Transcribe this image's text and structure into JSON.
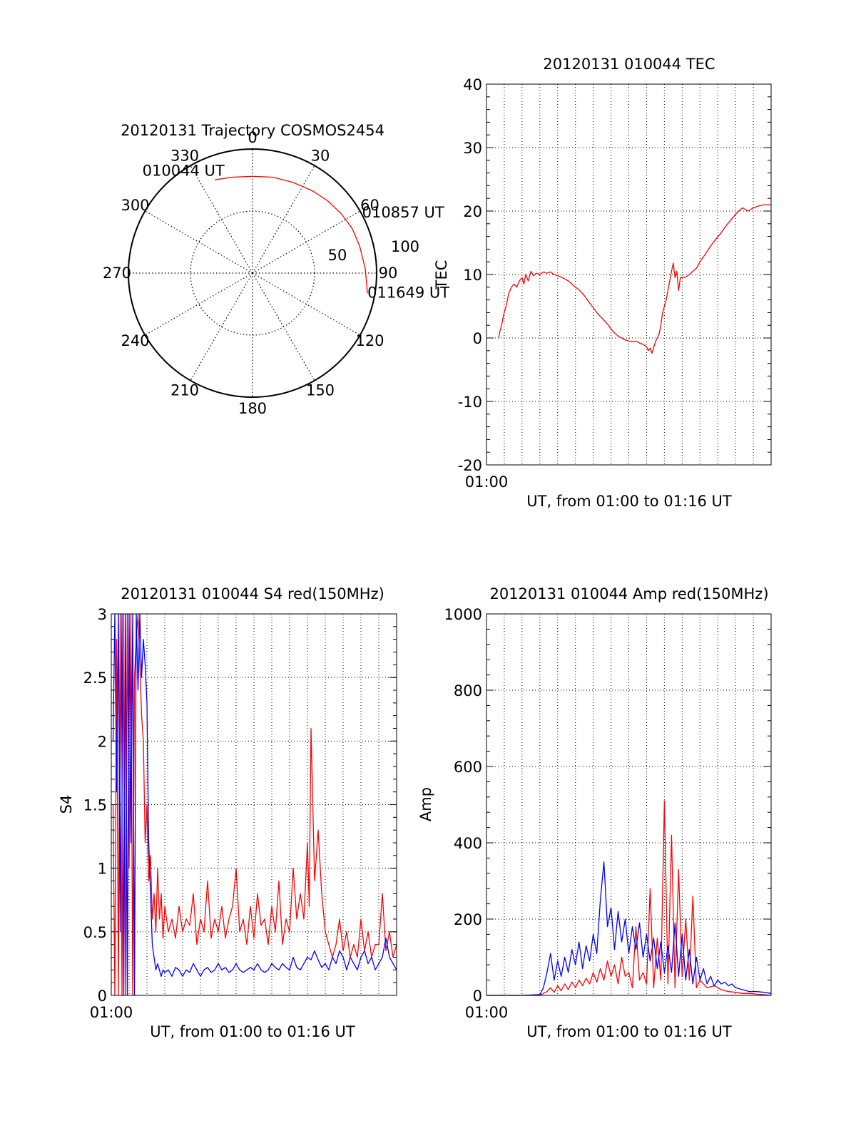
{
  "colors": {
    "red": "#ff0000",
    "blue": "#0000ff",
    "axis": "#000000",
    "grid": "#000000"
  },
  "chart_data": [
    {
      "id": "polar",
      "type": "polar",
      "title": "20120131 Trajectory COSMOS2454",
      "azimuth_labels": [
        "0",
        "30",
        "60",
        "90",
        "120",
        "150",
        "180",
        "210",
        "240",
        "270",
        "300",
        "330"
      ],
      "radial_labels": [
        "50",
        "100"
      ],
      "rlim": [
        0,
        100
      ],
      "grid": true,
      "trajectory": {
        "color": "#ff0000",
        "points": [
          {
            "az": 338,
            "r": 81
          },
          {
            "az": 348,
            "r": 79
          },
          {
            "az": 0,
            "r": 78
          },
          {
            "az": 12,
            "r": 79
          },
          {
            "az": 24,
            "r": 80
          },
          {
            "az": 36,
            "r": 82
          },
          {
            "az": 46,
            "r": 84
          },
          {
            "az": 56,
            "r": 86
          },
          {
            "az": 66,
            "r": 88
          },
          {
            "az": 76,
            "r": 89
          },
          {
            "az": 88,
            "r": 91
          },
          {
            "az": 100,
            "r": 94
          }
        ]
      },
      "annotations": [
        {
          "text": "010044 UT",
          "az": 338,
          "r": 81
        },
        {
          "text": "010857 UT",
          "az": 55,
          "r": 78
        },
        {
          "text": "011649 UT",
          "az": 100,
          "r": 94
        }
      ]
    },
    {
      "id": "tec",
      "type": "line",
      "title": "20120131 010044 TEC",
      "ylabel": "TEC",
      "xlabel": "UT, from 01:00 to 01:16 UT",
      "x_tick_label": "01:00",
      "xlim": [
        0,
        16
      ],
      "ylim": [
        -20,
        40
      ],
      "y_ticks": [
        -20,
        -10,
        0,
        10,
        20,
        30,
        40
      ],
      "grid": true,
      "series": [
        {
          "color": "#ff0000",
          "x": [
            0.68,
            0.75,
            0.85,
            0.95,
            1.1,
            1.25,
            1.4,
            1.55,
            1.7,
            1.85,
            2.0,
            2.1,
            2.2,
            2.35,
            2.5,
            2.65,
            2.8,
            3.0,
            3.2,
            3.4,
            3.6,
            3.8,
            4.0,
            4.2,
            4.4,
            4.6,
            4.8,
            5.0,
            5.2,
            5.4,
            5.6,
            5.8,
            6.0,
            6.2,
            6.4,
            6.6,
            6.8,
            7.0,
            7.2,
            7.4,
            7.6,
            7.8,
            8.0,
            8.2,
            8.4,
            8.6,
            8.8,
            9.0,
            9.1,
            9.2,
            9.3,
            9.4,
            9.5,
            9.6,
            9.7,
            9.8,
            9.9,
            10.0,
            10.1,
            10.2,
            10.3,
            10.4,
            10.5,
            10.6,
            10.7,
            10.8,
            10.9,
            11.0,
            11.2,
            11.4,
            11.6,
            11.8,
            12.0,
            12.3,
            12.6,
            12.9,
            13.2,
            13.5,
            13.8,
            14.1,
            14.4,
            14.7,
            15.0,
            15.3,
            15.6,
            16.0
          ],
          "y": [
            0.0,
            1.0,
            2.0,
            3.5,
            5.0,
            7.0,
            8.0,
            8.5,
            8.0,
            9.0,
            9.5,
            8.5,
            10.0,
            9.0,
            10.5,
            9.8,
            10.2,
            10.0,
            10.4,
            10.2,
            10.4,
            10.0,
            9.8,
            9.6,
            9.3,
            9.0,
            8.5,
            8.0,
            7.6,
            7.0,
            6.3,
            5.5,
            4.8,
            4.0,
            3.4,
            2.8,
            2.2,
            1.4,
            0.8,
            0.3,
            0.0,
            -0.3,
            -0.5,
            -0.6,
            -0.5,
            -0.8,
            -1.0,
            -1.4,
            -2.0,
            -1.6,
            -2.4,
            -1.5,
            -0.6,
            0.0,
            0.6,
            2.0,
            4.0,
            5.0,
            6.0,
            7.5,
            9.0,
            10.5,
            11.8,
            9.5,
            10.5,
            7.5,
            9.5,
            9.5,
            9.6,
            10.0,
            10.5,
            11.0,
            12.0,
            13.2,
            14.5,
            15.6,
            16.6,
            17.8,
            18.8,
            19.8,
            20.5,
            20.0,
            20.5,
            20.8,
            21.0,
            21.0
          ]
        }
      ]
    },
    {
      "id": "s4",
      "type": "line",
      "title": "20120131 010044 S4 red(150MHz)",
      "ylabel": "S4",
      "xlabel": "UT, from 01:00 to 01:16 UT",
      "x_tick_label": "01:00",
      "xlim": [
        0,
        16
      ],
      "ylim": [
        0,
        3
      ],
      "y_ticks": [
        0,
        0.5,
        1,
        1.5,
        2,
        2.5,
        3
      ],
      "y_tick_labels": [
        "0",
        "0.5",
        "1",
        "1.5",
        "2",
        "2.5",
        "3"
      ],
      "grid": true,
      "series": [
        {
          "color": "#ff0000",
          "x": [
            0.1,
            0.2,
            0.3,
            0.4,
            0.5,
            0.6,
            0.7,
            0.8,
            0.9,
            1.0,
            1.1,
            1.2,
            1.3,
            1.4,
            1.5,
            1.6,
            1.7,
            1.8,
            1.9,
            2.0,
            2.1,
            2.2,
            2.3,
            2.4,
            2.5,
            2.6,
            2.7,
            2.8,
            2.9,
            3.0,
            3.2,
            3.4,
            3.6,
            3.8,
            4.0,
            4.2,
            4.4,
            4.6,
            4.8,
            5.0,
            5.2,
            5.4,
            5.6,
            5.8,
            6.0,
            6.2,
            6.4,
            6.6,
            6.8,
            7.0,
            7.2,
            7.4,
            7.6,
            7.8,
            8.0,
            8.2,
            8.4,
            8.6,
            8.8,
            9.0,
            9.2,
            9.4,
            9.6,
            9.8,
            10.0,
            10.2,
            10.4,
            10.6,
            10.8,
            11.0,
            11.1,
            11.2,
            11.4,
            11.6,
            11.8,
            12.0,
            12.2,
            12.4,
            12.6,
            12.8,
            13.0,
            13.2,
            13.4,
            13.6,
            13.8,
            14.0,
            14.2,
            14.4,
            14.6,
            14.8,
            15.0,
            15.2,
            15.4,
            15.6,
            15.8,
            16.0
          ],
          "y": [
            1.5,
            0,
            2.8,
            0,
            3,
            0,
            3,
            0,
            3,
            1,
            3,
            0,
            2.5,
            2.8,
            3,
            2.6,
            2.2,
            2.0,
            1.2,
            1.5,
            0.9,
            1.1,
            0.6,
            0.8,
            0.5,
            1.0,
            0.6,
            0.8,
            0.45,
            0.7,
            0.5,
            0.6,
            0.45,
            0.7,
            0.5,
            0.6,
            0.55,
            0.8,
            0.4,
            0.6,
            0.5,
            0.9,
            0.45,
            0.6,
            0.5,
            0.7,
            0.45,
            0.6,
            0.7,
            1.0,
            0.5,
            0.6,
            0.4,
            0.7,
            0.45,
            0.8,
            0.55,
            0.6,
            0.4,
            0.7,
            0.5,
            0.9,
            0.4,
            0.6,
            0.5,
            1.0,
            0.6,
            0.8,
            0.6,
            1.2,
            0.7,
            2.1,
            0.9,
            1.3,
            0.8,
            0.5,
            0.4,
            0.3,
            0.4,
            0.6,
            0.35,
            0.5,
            0.3,
            0.4,
            0.3,
            0.6,
            0.35,
            0.5,
            0.3,
            0.4,
            0.4,
            0.8,
            0.35,
            0.5,
            0.3,
            0.4
          ]
        },
        {
          "color": "#0000ff",
          "x": [
            0.1,
            0.2,
            0.3,
            0.4,
            0.5,
            0.6,
            0.7,
            0.8,
            0.9,
            1.0,
            1.1,
            1.2,
            1.3,
            1.4,
            1.5,
            1.6,
            1.7,
            1.8,
            1.9,
            2.0,
            2.1,
            2.2,
            2.3,
            2.4,
            2.5,
            2.6,
            2.7,
            2.8,
            2.9,
            3.0,
            3.2,
            3.4,
            3.6,
            3.8,
            4.0,
            4.2,
            4.4,
            4.6,
            4.8,
            5.0,
            5.2,
            5.4,
            5.6,
            5.8,
            6.0,
            6.2,
            6.4,
            6.6,
            6.8,
            7.0,
            7.2,
            7.4,
            7.6,
            7.8,
            8.0,
            8.2,
            8.4,
            8.6,
            8.8,
            9.0,
            9.2,
            9.4,
            9.6,
            9.8,
            10.0,
            10.2,
            10.4,
            10.6,
            10.8,
            11.0,
            11.2,
            11.4,
            11.6,
            11.8,
            12.0,
            12.2,
            12.4,
            12.6,
            12.8,
            13.0,
            13.2,
            13.4,
            13.6,
            13.8,
            14.0,
            14.2,
            14.4,
            14.6,
            14.8,
            15.0,
            15.2,
            15.4,
            15.6,
            15.8,
            16.0
          ],
          "y": [
            2.0,
            3,
            1.6,
            3,
            0.5,
            3,
            0,
            3,
            0,
            3,
            1.2,
            3,
            0,
            3,
            2.4,
            3,
            2.5,
            2.8,
            2.6,
            2.3,
            1.2,
            0.8,
            0.4,
            0.3,
            0.2,
            0.25,
            0.2,
            0.15,
            0.2,
            0.18,
            0.2,
            0.15,
            0.22,
            0.2,
            0.15,
            0.2,
            0.18,
            0.25,
            0.2,
            0.15,
            0.2,
            0.22,
            0.18,
            0.2,
            0.25,
            0.2,
            0.22,
            0.18,
            0.2,
            0.25,
            0.2,
            0.18,
            0.2,
            0.22,
            0.2,
            0.25,
            0.2,
            0.18,
            0.2,
            0.25,
            0.22,
            0.2,
            0.25,
            0.22,
            0.2,
            0.3,
            0.22,
            0.2,
            0.25,
            0.3,
            0.28,
            0.35,
            0.28,
            0.22,
            0.25,
            0.2,
            0.3,
            0.25,
            0.35,
            0.3,
            0.2,
            0.3,
            0.25,
            0.2,
            0.3,
            0.35,
            0.25,
            0.3,
            0.2,
            0.25,
            0.3,
            0.45,
            0.3,
            0.25,
            0.2
          ]
        }
      ]
    },
    {
      "id": "amp",
      "type": "line",
      "title": "20120131 010044 Amp red(150MHz)",
      "ylabel": "Amp",
      "xlabel": "UT, from 01:00 to 01:16 UT",
      "x_tick_label": "01:00",
      "xlim": [
        0,
        16
      ],
      "ylim": [
        0,
        1000
      ],
      "y_ticks": [
        0,
        200,
        400,
        600,
        800,
        1000
      ],
      "grid": true,
      "series": [
        {
          "color": "#ff0000",
          "x": [
            0.0,
            1.0,
            2.0,
            3.0,
            3.2,
            3.4,
            3.6,
            3.8,
            4.0,
            4.2,
            4.4,
            4.6,
            4.8,
            5.0,
            5.2,
            5.4,
            5.6,
            5.8,
            6.0,
            6.2,
            6.4,
            6.6,
            6.8,
            7.0,
            7.2,
            7.4,
            7.6,
            7.8,
            8.0,
            8.2,
            8.4,
            8.6,
            8.8,
            9.0,
            9.2,
            9.4,
            9.6,
            9.8,
            10.0,
            10.2,
            10.4,
            10.6,
            10.8,
            11.0,
            11.2,
            11.4,
            11.6,
            11.8,
            12.0,
            12.4,
            12.8,
            13.2,
            13.6,
            14.0,
            14.4,
            14.8,
            15.2,
            15.6,
            16.0
          ],
          "y": [
            0,
            0,
            0,
            0,
            5,
            10,
            20,
            8,
            25,
            12,
            30,
            15,
            35,
            20,
            40,
            25,
            45,
            30,
            60,
            35,
            70,
            40,
            90,
            50,
            80,
            30,
            100,
            50,
            60,
            20,
            180,
            40,
            60,
            30,
            280,
            20,
            150,
            40,
            510,
            30,
            420,
            20,
            330,
            50,
            200,
            40,
            260,
            20,
            40,
            20,
            25,
            15,
            10,
            8,
            5,
            5,
            3,
            2,
            0
          ]
        },
        {
          "color": "#0000ff",
          "x": [
            0.0,
            1.0,
            2.0,
            3.0,
            3.2,
            3.4,
            3.6,
            3.8,
            4.0,
            4.2,
            4.4,
            4.6,
            4.8,
            5.0,
            5.2,
            5.4,
            5.6,
            5.8,
            6.0,
            6.2,
            6.4,
            6.6,
            6.8,
            7.0,
            7.2,
            7.4,
            7.6,
            7.8,
            8.0,
            8.2,
            8.4,
            8.6,
            8.8,
            9.0,
            9.2,
            9.4,
            9.6,
            9.8,
            10.0,
            10.2,
            10.4,
            10.6,
            10.8,
            11.0,
            11.2,
            11.4,
            11.6,
            11.8,
            12.0,
            12.2,
            12.4,
            12.6,
            12.8,
            13.0,
            13.2,
            13.4,
            13.6,
            13.8,
            14.0,
            14.4,
            14.8,
            15.2,
            15.6,
            16.0
          ],
          "y": [
            0,
            0,
            0,
            2,
            20,
            60,
            110,
            40,
            90,
            50,
            100,
            60,
            120,
            80,
            140,
            70,
            130,
            90,
            160,
            110,
            250,
            350,
            180,
            230,
            120,
            220,
            140,
            200,
            110,
            180,
            120,
            190,
            100,
            160,
            90,
            150,
            70,
            140,
            60,
            130,
            60,
            190,
            50,
            160,
            40,
            120,
            30,
            100,
            40,
            70,
            30,
            50,
            25,
            40,
            30,
            35,
            25,
            30,
            20,
            15,
            10,
            10,
            8,
            5
          ]
        }
      ]
    }
  ]
}
